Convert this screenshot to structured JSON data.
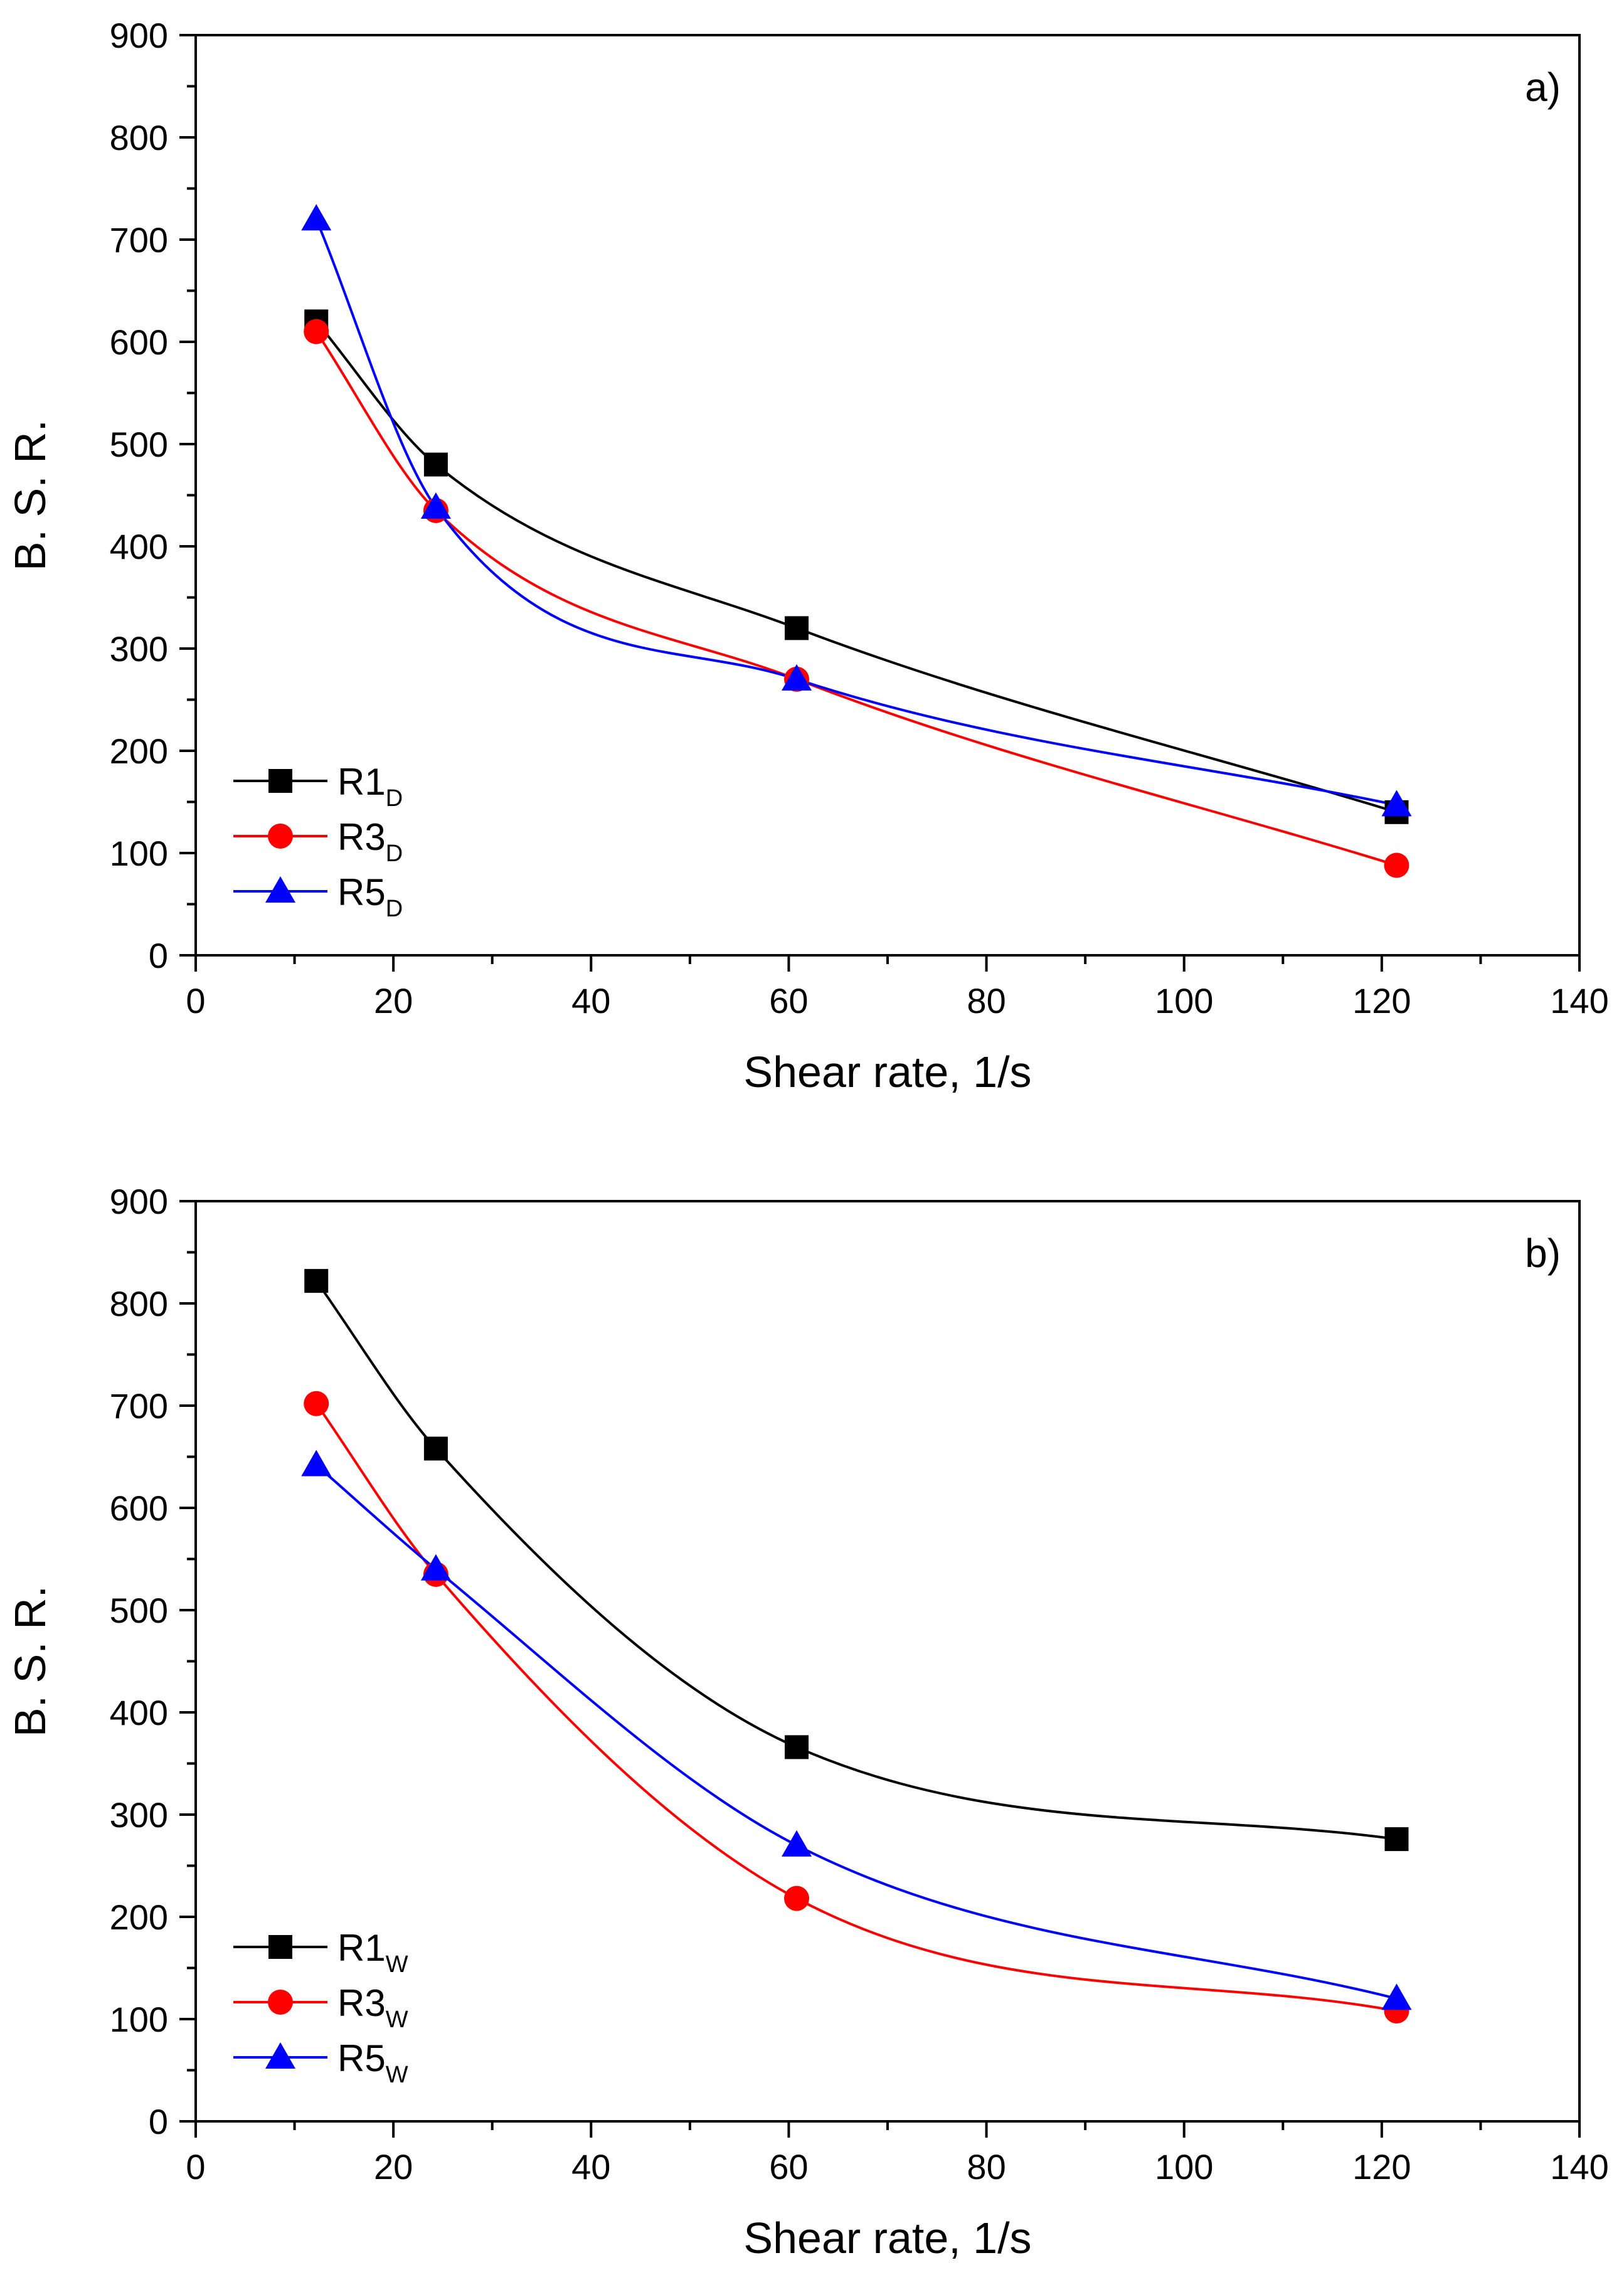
{
  "chart_data": [
    {
      "type": "line",
      "panel_label": "a)",
      "xlabel": "Shear rate, 1/s",
      "ylabel": "B. S. R.",
      "xlim": [
        0,
        140
      ],
      "ylim": [
        0,
        900
      ],
      "x_ticks": [
        "0",
        "20",
        "40",
        "60",
        "80",
        "100",
        "120",
        "140"
      ],
      "y_ticks": [
        "0",
        "100",
        "200",
        "300",
        "400",
        "500",
        "600",
        "700",
        "800",
        "900"
      ],
      "grid": false,
      "legend_position": "bottom-left",
      "x": [
        12.2,
        24.3,
        60.8,
        121.5
      ],
      "series": [
        {
          "name": "R1",
          "subscript": "D",
          "marker": "square",
          "color": "#000000",
          "values": [
            620,
            480,
            320,
            140
          ]
        },
        {
          "name": "R3",
          "subscript": "D",
          "marker": "circle",
          "color": "#ff0000",
          "values": [
            610,
            435,
            270,
            88
          ]
        },
        {
          "name": "R5",
          "subscript": "D",
          "marker": "triangle",
          "color": "#0000ff",
          "values": [
            720,
            438,
            270,
            147
          ]
        }
      ]
    },
    {
      "type": "line",
      "panel_label": "b)",
      "xlabel": "Shear rate, 1/s",
      "ylabel": "B. S. R.",
      "xlim": [
        0,
        140
      ],
      "ylim": [
        0,
        900
      ],
      "x_ticks": [
        "0",
        "20",
        "40",
        "60",
        "80",
        "100",
        "120",
        "140"
      ],
      "y_ticks": [
        "0",
        "100",
        "200",
        "300",
        "400",
        "500",
        "600",
        "700",
        "800",
        "900"
      ],
      "grid": false,
      "legend_position": "bottom-left",
      "x": [
        12.2,
        24.3,
        60.8,
        121.5
      ],
      "series": [
        {
          "name": "R1",
          "subscript": "W",
          "marker": "square",
          "color": "#000000",
          "values": [
            822,
            658,
            366,
            276
          ]
        },
        {
          "name": "R3",
          "subscript": "W",
          "marker": "circle",
          "color": "#ff0000",
          "values": [
            702,
            535,
            218,
            108
          ]
        },
        {
          "name": "R5",
          "subscript": "W",
          "marker": "triangle",
          "color": "#0000ff",
          "values": [
            642,
            540,
            270,
            120
          ]
        }
      ]
    }
  ]
}
